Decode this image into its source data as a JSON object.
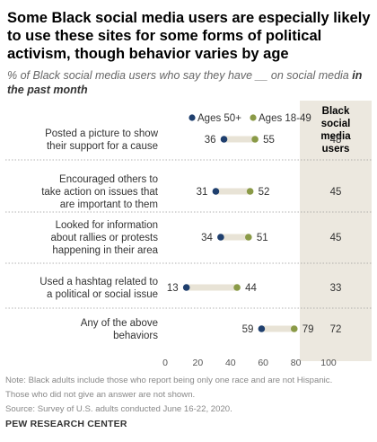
{
  "title_lines": [
    "Some Black social media users are especially likely",
    "to use these sites for some forms of political",
    "activism, though behavior varies by age"
  ],
  "subtitle_main": "% of Black social media users who say they have __ on social media",
  "subtitle_emphasis": "in the past month",
  "side_column": {
    "header_lines": [
      "Black",
      "social",
      "media",
      "users"
    ],
    "values": [
      48,
      45,
      45,
      33,
      72
    ]
  },
  "chart_data": {
    "type": "dot",
    "categories": [
      [
        "Posted a picture to show",
        "their support for a cause"
      ],
      [
        "Encouraged others to",
        "take action on issues that",
        "are important to them"
      ],
      [
        "Looked for information",
        "about rallies or protests",
        "happening in their area"
      ],
      [
        "Used a hashtag related to",
        "a political or social issue"
      ],
      [
        "Any of the above",
        "behaviors"
      ]
    ],
    "series": [
      {
        "name": "Ages 50+",
        "color": "#1f3f6e",
        "values": [
          36,
          31,
          34,
          13,
          59
        ]
      },
      {
        "name": "Ages 18-49",
        "color": "#8a9a47",
        "values": [
          55,
          52,
          51,
          44,
          79
        ]
      }
    ],
    "xlim": [
      0,
      100
    ],
    "xticks": [
      0,
      20,
      40,
      60,
      80,
      100
    ],
    "legend_position": "top"
  },
  "notes": [
    "Note: Black adults include those who report being only one race and are not Hispanic.",
    "Those who did not give an answer are not shown.",
    "Source: Survey of U.S. adults conducted June 16-22, 2020."
  ],
  "credit": "PEW RESEARCH CENTER"
}
